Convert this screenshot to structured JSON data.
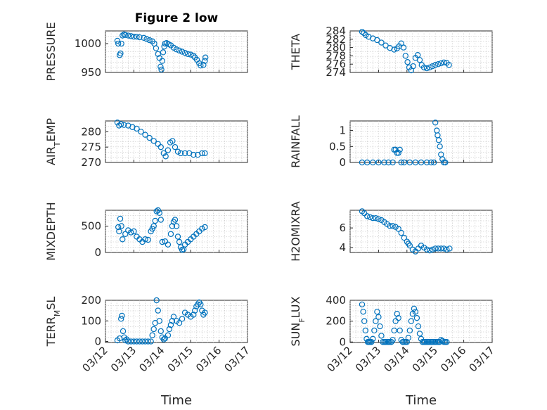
{
  "figure_title": "Figure 2 low",
  "colors": {
    "marker": "#0072bd",
    "axes": "#262626",
    "grid": "#bfbfbf"
  },
  "chart_data": [
    {
      "type": "scatter",
      "ylabel": "PRESSURE",
      "ylim": [
        950,
        1022
      ],
      "yticks": [
        950,
        1000
      ],
      "xlim": [
        0,
        5
      ],
      "x": [
        0.42,
        0.45,
        0.5,
        0.53,
        0.56,
        0.6,
        0.65,
        0.7,
        0.8,
        0.9,
        1.0,
        1.1,
        1.2,
        1.35,
        1.45,
        1.55,
        1.65,
        1.72,
        1.78,
        1.85,
        1.9,
        1.94,
        1.97,
        2.0,
        2.03,
        2.07,
        2.1,
        2.15,
        2.22,
        2.3,
        2.4,
        2.5,
        2.6,
        2.7,
        2.8,
        2.9,
        3.0,
        3.1,
        3.15,
        3.22,
        3.3,
        3.35,
        3.45,
        3.5,
        3.52
      ],
      "y": [
        1005,
        1000,
        980,
        983,
        1000,
        1014,
        1016,
        1015,
        1014,
        1013,
        1012,
        1012,
        1011,
        1010,
        1008,
        1006,
        1004,
        1000,
        992,
        982,
        975,
        960,
        955,
        970,
        985,
        995,
        1000,
        1001,
        999,
        997,
        993,
        990,
        988,
        986,
        984,
        982,
        981,
        979,
        976,
        972,
        966,
        962,
        963,
        970,
        976
      ]
    },
    {
      "type": "scatter",
      "ylabel": "THETA",
      "ylim": [
        274,
        284
      ],
      "yticks": [
        274,
        276,
        278,
        280,
        282,
        284
      ],
      "xlim": [
        0,
        5
      ],
      "x": [
        0.42,
        0.48,
        0.55,
        0.65,
        0.8,
        0.95,
        1.1,
        1.25,
        1.4,
        1.55,
        1.65,
        1.72,
        1.8,
        1.88,
        1.95,
        2.02,
        2.08,
        2.15,
        2.22,
        2.3,
        2.38,
        2.45,
        2.52,
        2.6,
        2.7,
        2.8,
        2.9,
        3.0,
        3.1,
        3.2,
        3.3,
        3.4,
        3.48
      ],
      "y": [
        283.8,
        283.5,
        283.0,
        282.6,
        282.2,
        281.8,
        281.2,
        280.5,
        279.9,
        279.5,
        279.8,
        280.3,
        281.0,
        280.0,
        278.0,
        276.5,
        275.2,
        274.5,
        275.5,
        277.5,
        278.2,
        277.0,
        275.8,
        275.2,
        275.0,
        275.2,
        275.5,
        275.8,
        276.0,
        276.2,
        276.4,
        276.3,
        275.8
      ]
    },
    {
      "type": "scatter",
      "ylabel": "AIR_TEMP",
      "ylim": [
        270,
        283.5
      ],
      "yticks": [
        270,
        275,
        280
      ],
      "xlim": [
        0,
        5
      ],
      "x": [
        0.42,
        0.48,
        0.55,
        0.65,
        0.8,
        0.95,
        1.1,
        1.25,
        1.4,
        1.55,
        1.7,
        1.85,
        1.95,
        2.05,
        2.12,
        2.2,
        2.28,
        2.36,
        2.45,
        2.55,
        2.65,
        2.8,
        2.95,
        3.1,
        3.25,
        3.4,
        3.5
      ],
      "y": [
        283.0,
        282.0,
        282.5,
        282.2,
        282.0,
        281.5,
        281.0,
        280.0,
        279.0,
        278.0,
        277.0,
        276.0,
        275.0,
        273.0,
        272.0,
        274.0,
        276.5,
        277.0,
        275.0,
        273.5,
        273.0,
        273.0,
        273.0,
        272.5,
        272.5,
        273.0,
        273.0
      ]
    },
    {
      "type": "scatter",
      "ylabel": "RAINFALL",
      "ylim": [
        0,
        1.3
      ],
      "yticks": [
        0,
        0.5,
        1
      ],
      "xlim": [
        0,
        5
      ],
      "x": [
        0.42,
        0.6,
        0.8,
        1.0,
        1.2,
        1.35,
        1.5,
        1.55,
        1.6,
        1.65,
        1.7,
        1.75,
        1.8,
        1.9,
        2.1,
        2.3,
        2.5,
        2.7,
        2.85,
        2.95,
        3.0,
        3.05,
        3.08,
        3.12,
        3.16,
        3.2,
        3.25,
        3.3,
        3.35
      ],
      "y": [
        0,
        0,
        0,
        0,
        0,
        0,
        0,
        0.4,
        0.4,
        0.3,
        0.3,
        0.4,
        0,
        0,
        0,
        0,
        0,
        0,
        0,
        0,
        1.25,
        1.0,
        0.85,
        0.7,
        0.5,
        0.25,
        0.1,
        0,
        0
      ]
    },
    {
      "type": "scatter",
      "ylabel": "MIXDEPTH",
      "ylim": [
        0,
        800
      ],
      "yticks": [
        0,
        500
      ],
      "xlim": [
        0,
        5
      ],
      "x": [
        0.45,
        0.48,
        0.52,
        0.56,
        0.6,
        0.7,
        0.8,
        0.9,
        1.0,
        1.1,
        1.2,
        1.3,
        1.4,
        1.5,
        1.6,
        1.65,
        1.7,
        1.75,
        1.8,
        1.85,
        1.9,
        1.95,
        2.0,
        2.1,
        2.2,
        2.3,
        2.35,
        2.4,
        2.45,
        2.5,
        2.55,
        2.6,
        2.65,
        2.7,
        2.75,
        2.8,
        2.9,
        3.0,
        3.1,
        3.2,
        3.3,
        3.4,
        3.5
      ],
      "y": [
        480,
        400,
        640,
        500,
        250,
        350,
        420,
        380,
        400,
        300,
        250,
        200,
        250,
        240,
        400,
        450,
        500,
        600,
        780,
        800,
        750,
        620,
        200,
        210,
        150,
        350,
        500,
        580,
        620,
        500,
        300,
        200,
        100,
        50,
        60,
        150,
        200,
        250,
        300,
        350,
        400,
        450,
        480
      ]
    },
    {
      "type": "scatter",
      "ylabel": "H2OMIXRA",
      "ylim": [
        3.5,
        7.8
      ],
      "yticks": [
        4,
        6
      ],
      "xlim": [
        0,
        5
      ],
      "x": [
        0.42,
        0.5,
        0.6,
        0.7,
        0.8,
        0.9,
        1.0,
        1.1,
        1.2,
        1.3,
        1.4,
        1.5,
        1.6,
        1.7,
        1.8,
        1.9,
        2.0,
        2.05,
        2.1,
        2.2,
        2.3,
        2.4,
        2.5,
        2.6,
        2.7,
        2.8,
        2.9,
        3.0,
        3.1,
        3.2,
        3.3,
        3.4,
        3.5
      ],
      "y": [
        7.7,
        7.5,
        7.2,
        7.1,
        7.0,
        7.0,
        6.9,
        6.8,
        6.6,
        6.4,
        6.2,
        6.2,
        6.1,
        5.9,
        5.5,
        5.0,
        4.6,
        4.4,
        4.2,
        3.8,
        3.6,
        3.9,
        4.2,
        4.0,
        3.8,
        3.7,
        3.8,
        3.9,
        3.9,
        3.9,
        3.9,
        3.8,
        3.9
      ]
    },
    {
      "type": "scatter",
      "ylabel": "TERR_MSL",
      "ylim": [
        -5,
        200
      ],
      "yticks": [
        0,
        100,
        200
      ],
      "xlim": [
        0,
        5
      ],
      "x": [
        0.42,
        0.5,
        0.55,
        0.58,
        0.62,
        0.66,
        0.7,
        0.75,
        0.8,
        0.9,
        1.0,
        1.1,
        1.2,
        1.3,
        1.4,
        1.5,
        1.6,
        1.65,
        1.7,
        1.75,
        1.8,
        1.85,
        1.9,
        1.95,
        2.0,
        2.05,
        2.1,
        2.2,
        2.25,
        2.3,
        2.35,
        2.4,
        2.5,
        2.6,
        2.7,
        2.8,
        2.9,
        3.0,
        3.1,
        3.15,
        3.2,
        3.25,
        3.3,
        3.35,
        3.4,
        3.45,
        3.5
      ],
      "y": [
        5,
        15,
        110,
        125,
        50,
        20,
        5,
        10,
        0,
        0,
        0,
        0,
        0,
        0,
        0,
        0,
        0,
        30,
        60,
        90,
        200,
        150,
        100,
        50,
        20,
        10,
        15,
        30,
        60,
        80,
        100,
        120,
        100,
        90,
        110,
        140,
        130,
        120,
        130,
        150,
        170,
        180,
        190,
        180,
        150,
        130,
        140
      ]
    },
    {
      "type": "scatter",
      "ylabel": "SUN_FLUX",
      "ylim": [
        -5,
        400
      ],
      "yticks": [
        0,
        200,
        400
      ],
      "xlim": [
        0,
        5
      ],
      "x": [
        0.42,
        0.46,
        0.5,
        0.54,
        0.58,
        0.62,
        0.66,
        0.7,
        0.75,
        0.8,
        0.85,
        0.9,
        0.95,
        1.0,
        1.05,
        1.1,
        1.15,
        1.2,
        1.25,
        1.3,
        1.35,
        1.4,
        1.45,
        1.5,
        1.55,
        1.6,
        1.65,
        1.7,
        1.75,
        1.8,
        1.85,
        1.9,
        1.95,
        2.0,
        2.05,
        2.1,
        2.15,
        2.2,
        2.25,
        2.3,
        2.35,
        2.4,
        2.45,
        2.5,
        2.55,
        2.6,
        2.65,
        2.7,
        2.75,
        2.8,
        2.85,
        2.9,
        2.95,
        3.0,
        3.05,
        3.1,
        3.15,
        3.2,
        3.25,
        3.3,
        3.35,
        3.4
      ],
      "y": [
        360,
        290,
        200,
        110,
        30,
        0,
        0,
        0,
        0,
        30,
        110,
        200,
        290,
        240,
        150,
        60,
        0,
        0,
        0,
        0,
        0,
        0,
        0,
        20,
        110,
        200,
        270,
        230,
        110,
        20,
        0,
        0,
        0,
        0,
        40,
        110,
        200,
        270,
        320,
        290,
        230,
        150,
        80,
        30,
        0,
        0,
        0,
        0,
        0,
        0,
        0,
        0,
        0,
        0,
        0,
        0,
        0,
        20,
        10,
        0,
        0,
        0
      ]
    }
  ],
  "xaxis": {
    "ticks": [
      "03/12",
      "03/13",
      "03/14",
      "03/15",
      "03/16",
      "03/17"
    ],
    "label": "Time"
  }
}
